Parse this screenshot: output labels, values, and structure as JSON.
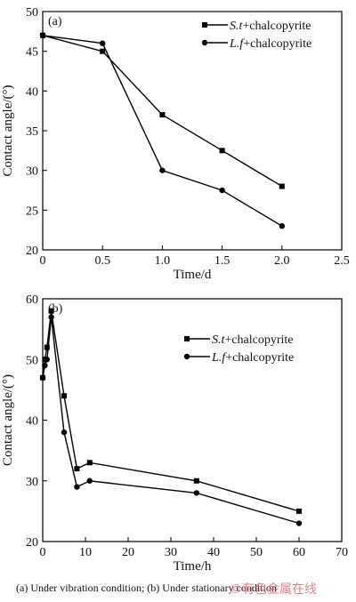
{
  "chart_data": [
    {
      "type": "line",
      "panel_label": "(a)",
      "xlabel": "Time/d",
      "ylabel": "Contact angle/(°)",
      "xlim": [
        0,
        2.5
      ],
      "ylim": [
        20,
        50
      ],
      "xticks": [
        "0",
        "0.5",
        "1.0",
        "1.5",
        "2.0",
        "2.5"
      ],
      "yticks": [
        "20",
        "25",
        "30",
        "35",
        "40",
        "45",
        "50"
      ],
      "legend_position": "top-right",
      "grid": false,
      "series": [
        {
          "name": "S.t+chalcopyrite",
          "italic": "S.t",
          "rest": "+chalcopyrite",
          "marker": "square",
          "x": [
            0,
            0.5,
            1.0,
            1.5,
            2.0
          ],
          "values": [
            47,
            45,
            37,
            32.5,
            28
          ]
        },
        {
          "name": "L.f+chalcopyrite",
          "italic": "L.f",
          "rest": "+chalcopyrite",
          "marker": "circle",
          "x": [
            0,
            0.5,
            1.0,
            1.5,
            2.0
          ],
          "values": [
            47,
            46,
            30,
            27.5,
            23
          ]
        }
      ]
    },
    {
      "type": "line",
      "panel_label": "(b)",
      "xlabel": "Time/h",
      "ylabel": "Contact angle/(°)",
      "xlim": [
        0,
        70
      ],
      "ylim": [
        20,
        60
      ],
      "xticks": [
        "0",
        "10",
        "20",
        "30",
        "40",
        "50",
        "60",
        "70"
      ],
      "yticks": [
        "20",
        "30",
        "40",
        "50",
        "60"
      ],
      "legend_position": "top-right",
      "grid": false,
      "series": [
        {
          "name": "S.t+chalcopyrite",
          "italic": "S.t",
          "rest": "+chalcopyrite",
          "marker": "square",
          "x": [
            0,
            0.5,
            1,
            2,
            5,
            8,
            11,
            36,
            60
          ],
          "values": [
            47,
            50,
            52,
            58,
            44,
            32,
            33,
            30,
            25
          ]
        },
        {
          "name": "L.f+chalcopyrite",
          "italic": "L.f",
          "rest": "+chalcopyrite",
          "marker": "circle",
          "x": [
            0,
            0.5,
            1,
            2,
            5,
            8,
            11,
            36,
            60
          ],
          "values": [
            47,
            49,
            50,
            57,
            38,
            29,
            30,
            28,
            23
          ]
        }
      ]
    }
  ],
  "caption": "(a)   Under   vibration condition; (b) Under stationary condition",
  "watermark": "©有色金属在线"
}
